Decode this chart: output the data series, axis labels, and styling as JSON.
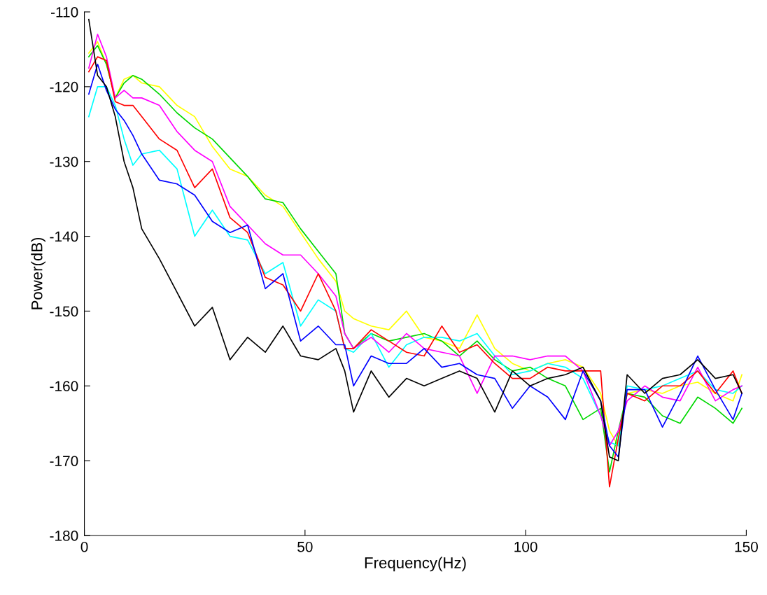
{
  "chart_data": {
    "type": "line",
    "xlabel": "Frequency(Hz)",
    "ylabel": "Power(dB)",
    "x": [
      1,
      3,
      5,
      7,
      9,
      11,
      13,
      17,
      21,
      25,
      29,
      33,
      37,
      41,
      45,
      49,
      53,
      57,
      59,
      61,
      65,
      69,
      73,
      77,
      81,
      85,
      89,
      93,
      97,
      101,
      105,
      109,
      113,
      117,
      119,
      121,
      123,
      127,
      131,
      135,
      139,
      143,
      147,
      149
    ],
    "series": [
      {
        "color": "#ffff00",
        "values": [
          -115.5,
          -114,
          -117,
          -121.5,
          -119,
          -118.5,
          -119.5,
          -120,
          -122.5,
          -124,
          -128,
          -131,
          -132,
          -134.5,
          -136,
          -139.5,
          -143,
          -146,
          -150,
          -151,
          -152,
          -152.5,
          -150,
          -153.5,
          -154,
          -155,
          -150.5,
          -155,
          -157,
          -158,
          -157,
          -156.5,
          -157.5,
          -161,
          -166,
          -168,
          -161,
          -160.5,
          -161,
          -160,
          -159.5,
          -161,
          -162,
          -158.5
        ]
      },
      {
        "color": "#00d800",
        "values": [
          -116,
          -114.5,
          -117,
          -121.5,
          -119.5,
          -118.5,
          -119,
          -121,
          -123.5,
          -125.5,
          -127,
          -129.5,
          -132,
          -135,
          -135.5,
          -139,
          -142,
          -145,
          -153,
          -155,
          -153,
          -154,
          -153.5,
          -153,
          -154,
          -156,
          -154,
          -156.5,
          -158,
          -157.5,
          -159,
          -160,
          -164.5,
          -163,
          -171.5,
          -166,
          -161,
          -161.5,
          -164,
          -165,
          -161.5,
          -163,
          -165,
          -163
        ]
      },
      {
        "color": "#00ffff",
        "values": [
          -124,
          -120,
          -120,
          -122.5,
          -127,
          -130.5,
          -129,
          -128.5,
          -131,
          -140,
          -136.5,
          -140,
          -140.5,
          -145,
          -143.5,
          -152,
          -148.5,
          -150,
          -155,
          -155.5,
          -153,
          -157.5,
          -154.5,
          -153.5,
          -153.5,
          -154,
          -153,
          -156,
          -158.5,
          -158,
          -157,
          -157.5,
          -159,
          -164,
          -167.5,
          -168,
          -160,
          -160.5,
          -160,
          -159,
          -158,
          -160.5,
          -161,
          -160
        ]
      },
      {
        "color": "#ff00ff",
        "values": [
          -117.5,
          -113,
          -116,
          -121.5,
          -120.5,
          -121.5,
          -121.5,
          -122.5,
          -126,
          -128.5,
          -130,
          -136,
          -138.5,
          -141,
          -142.5,
          -142.5,
          -145,
          -148,
          -153,
          -155,
          -153.5,
          -155.5,
          -153,
          -155,
          -155.5,
          -156,
          -161,
          -156,
          -156,
          -156.5,
          -156,
          -156,
          -158,
          -164,
          -168,
          -166,
          -162,
          -160,
          -161.5,
          -162,
          -157.5,
          -162,
          -160.5,
          -160
        ]
      },
      {
        "color": "#ff0000",
        "values": [
          -118,
          -116,
          -116.5,
          -122,
          -122.5,
          -122.5,
          -124,
          -127,
          -128.5,
          -133.5,
          -131,
          -137.5,
          -139.5,
          -145.5,
          -146.5,
          -150,
          -145,
          -150,
          -155,
          -155,
          -152.5,
          -154,
          -155.5,
          -156,
          -152,
          -155.5,
          -154.5,
          -157,
          -159,
          -159,
          -157.5,
          -158,
          -158,
          -158,
          -173.5,
          -167,
          -161,
          -162,
          -160,
          -160,
          -158,
          -161,
          -158,
          -161
        ]
      },
      {
        "color": "#0000ff",
        "values": [
          -121,
          -117,
          -120.5,
          -123,
          -124.5,
          -126.5,
          -129,
          -132.5,
          -133,
          -134.5,
          -138,
          -139.5,
          -138.5,
          -147,
          -145,
          -154,
          -152,
          -154.5,
          -154.5,
          -160,
          -156,
          -157,
          -157,
          -155,
          -157.5,
          -157,
          -158.5,
          -159,
          -163,
          -160,
          -161.5,
          -164.5,
          -158,
          -162,
          -168,
          -169.5,
          -160.5,
          -160.5,
          -165.5,
          -161,
          -156,
          -160.5,
          -164.5,
          -161
        ]
      },
      {
        "color": "#000000",
        "values": [
          -111,
          -118.5,
          -120,
          -124,
          -130,
          -133.5,
          -139,
          -143,
          -147.5,
          -152,
          -149.5,
          -156.5,
          -153.5,
          -155.5,
          -152,
          -156,
          -156.5,
          -155,
          -158,
          -163.5,
          -158,
          -161.5,
          -159,
          -160,
          -159,
          -158,
          -159,
          -163.5,
          -158,
          -160,
          -159,
          -158.5,
          -157.5,
          -162,
          -169.5,
          -170,
          -158.5,
          -161,
          -159,
          -158.5,
          -156.5,
          -159,
          -158.5,
          -161
        ]
      }
    ],
    "xlim": [
      0,
      150
    ],
    "xticks": [
      0,
      50,
      100,
      150
    ],
    "ylim": [
      -180,
      -110
    ],
    "yticks": [
      -180,
      -170,
      -160,
      -150,
      -140,
      -130,
      -120,
      -110
    ],
    "grid": false
  }
}
